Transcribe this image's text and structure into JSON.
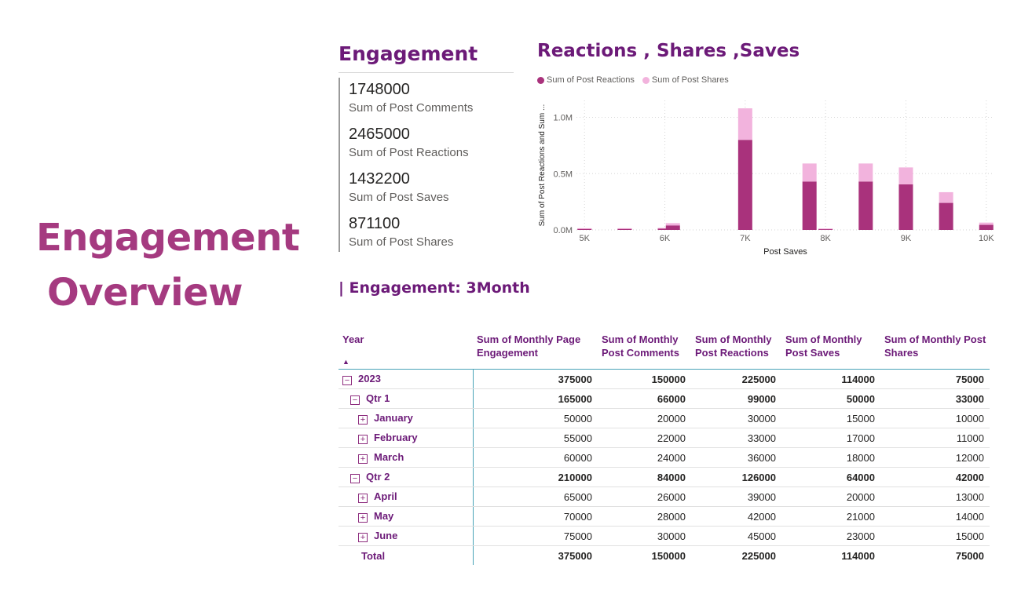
{
  "page": {
    "title_line1": "Engagement",
    "title_line2": "Overview"
  },
  "kpi_card": {
    "title": "Engagement",
    "items": [
      {
        "value": "1748000",
        "label": "Sum of Post Comments"
      },
      {
        "value": "2465000",
        "label": "Sum of Post Reactions"
      },
      {
        "value": "1432200",
        "label": "Sum of Post Saves"
      },
      {
        "value": "871100",
        "label": "Sum of Post Shares"
      }
    ]
  },
  "chart": {
    "title": "Reactions , Shares ,Saves",
    "legend": [
      {
        "label": "Sum of  Post Reactions",
        "color": "#a9327c"
      },
      {
        "label": "Sum of  Post Shares",
        "color": "#f2b3dd"
      }
    ]
  },
  "chart_data": {
    "type": "bar",
    "stacked": true,
    "xlabel": "Post Saves",
    "ylabel": "Sum of Post Reactions and Sum ...",
    "x_ticks": [
      "5K",
      "6K",
      "7K",
      "8K",
      "9K",
      "10K"
    ],
    "x_tick_values": [
      5000,
      6000,
      7000,
      8000,
      9000,
      10000
    ],
    "y_ticks": [
      "0.0M",
      "0.5M",
      "1.0M"
    ],
    "y_tick_values": [
      0,
      500000,
      1000000
    ],
    "xlim": [
      4900,
      10100
    ],
    "ylim": [
      0,
      1150000
    ],
    "x": [
      5000,
      5500,
      6000,
      6100,
      7000,
      7800,
      8000,
      8500,
      9000,
      9500,
      10000
    ],
    "series": [
      {
        "name": "Sum of  Post Reactions",
        "color": "#a9327c",
        "values": [
          12000,
          12000,
          15000,
          40000,
          800000,
          430000,
          10000,
          430000,
          405000,
          240000,
          45000
        ]
      },
      {
        "name": "Sum of  Post Shares",
        "color": "#f2b3dd",
        "values": [
          3000,
          3000,
          3000,
          20000,
          280000,
          160000,
          3000,
          160000,
          150000,
          95000,
          20000
        ]
      }
    ],
    "grid": true
  },
  "matrix": {
    "title": "| Engagement: 3Month",
    "columns": [
      "Year",
      "Sum of Monthly Page Engagement",
      "Sum of Monthly Post Comments",
      "Sum of Monthly Post Reactions",
      "Sum of Monthly Post Saves",
      "Sum of Monthly Post Shares"
    ],
    "sort_indicator": "▲",
    "rows": [
      {
        "label": "2023",
        "level": 0,
        "toggle": "−",
        "bold": true,
        "values": [
          "375000",
          "150000",
          "225000",
          "114000",
          "75000"
        ]
      },
      {
        "label": "Qtr 1",
        "level": 1,
        "toggle": "−",
        "bold": true,
        "values": [
          "165000",
          "66000",
          "99000",
          "50000",
          "33000"
        ]
      },
      {
        "label": "January",
        "level": 2,
        "toggle": "+",
        "bold": false,
        "values": [
          "50000",
          "20000",
          "30000",
          "15000",
          "10000"
        ]
      },
      {
        "label": "February",
        "level": 2,
        "toggle": "+",
        "bold": false,
        "values": [
          "55000",
          "22000",
          "33000",
          "17000",
          "11000"
        ]
      },
      {
        "label": "March",
        "level": 2,
        "toggle": "+",
        "bold": false,
        "values": [
          "60000",
          "24000",
          "36000",
          "18000",
          "12000"
        ]
      },
      {
        "label": "Qtr 2",
        "level": 1,
        "toggle": "−",
        "bold": true,
        "values": [
          "210000",
          "84000",
          "126000",
          "64000",
          "42000"
        ]
      },
      {
        "label": "April",
        "level": 2,
        "toggle": "+",
        "bold": false,
        "values": [
          "65000",
          "26000",
          "39000",
          "20000",
          "13000"
        ]
      },
      {
        "label": "May",
        "level": 2,
        "toggle": "+",
        "bold": false,
        "values": [
          "70000",
          "28000",
          "42000",
          "21000",
          "14000"
        ]
      },
      {
        "label": "June",
        "level": 2,
        "toggle": "+",
        "bold": false,
        "values": [
          "75000",
          "30000",
          "45000",
          "23000",
          "15000"
        ]
      }
    ],
    "total": {
      "label": "Total",
      "values": [
        "375000",
        "150000",
        "225000",
        "114000",
        "75000"
      ]
    }
  }
}
